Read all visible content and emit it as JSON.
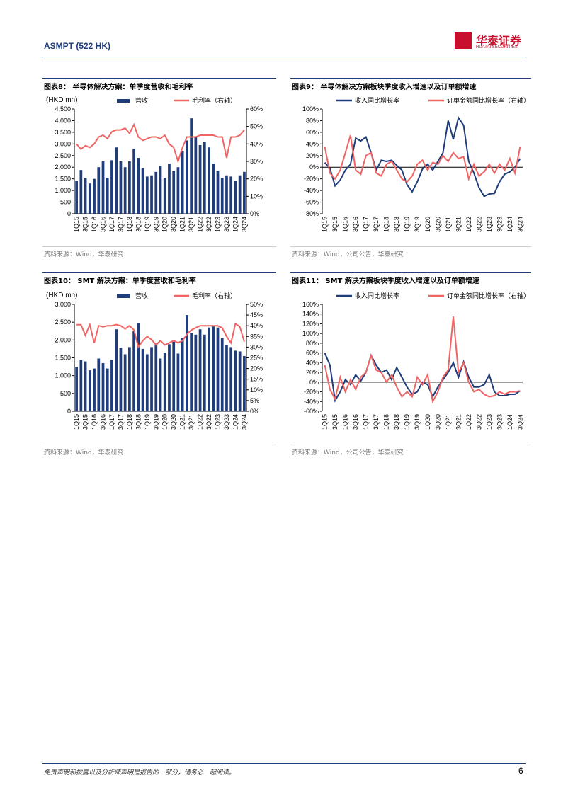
{
  "header": {
    "title": "ASMPT (522 HK)",
    "logo": "华泰证券",
    "logo_sub": "HUATAI SECURITIES"
  },
  "footer": {
    "disclaimer": "免责声明和披露以及分析师声明是报告的一部分，请务必一起阅读。",
    "page": "6"
  },
  "chart_data": [
    {
      "type": "combo",
      "title": "图表8：  半导体解决方案：单季度营收和毛利率",
      "source": "资料来源：Wind，华泰研究",
      "y_label": "(HKD mn)",
      "categories": [
        "1Q15",
        null,
        "3Q15",
        null,
        "1Q16",
        null,
        "3Q16",
        null,
        "1Q17",
        null,
        "3Q17",
        null,
        "1Q18",
        null,
        "3Q18",
        null,
        "1Q19",
        null,
        "3Q19",
        null,
        "1Q20",
        null,
        "3Q20",
        null,
        "1Q21",
        null,
        "3Q21",
        null,
        "1Q22",
        null,
        "3Q22",
        null,
        "1Q23",
        null,
        "3Q23",
        null,
        "1Q24",
        null,
        "3Q24"
      ],
      "series": [
        {
          "name": "营收",
          "color": "#1f3d7a",
          "values": [
            1400,
            1880,
            1520,
            1300,
            1500,
            2000,
            2250,
            1550,
            2300,
            2850,
            2250,
            2000,
            2250,
            2800,
            2400,
            1950,
            1600,
            1650,
            1800,
            2050,
            1550,
            2150,
            1850,
            2000,
            2700,
            3150,
            4100,
            3300,
            2950,
            3100,
            2850,
            2150,
            1850,
            1550,
            1650,
            1600,
            1400,
            1650,
            1800
          ]
        },
        {
          "name": "毛利率（右轴）",
          "color": "#f06464",
          "axis": "y2",
          "values": [
            40,
            37,
            39,
            38,
            40,
            44,
            45,
            43,
            47,
            48,
            48,
            49,
            46,
            51,
            44,
            42,
            43,
            44,
            44,
            43,
            45,
            40,
            38,
            30,
            38,
            44,
            44,
            44,
            45,
            45,
            45,
            45,
            44,
            44,
            32,
            44,
            44,
            45,
            48
          ]
        }
      ],
      "ylim": [
        0,
        4500
      ],
      "yticks": [
        0,
        500,
        {
          "value": 1000,
          "label": "1,000"
        },
        {
          "value": 1500,
          "label": "1,500"
        },
        {
          "value": 2000,
          "label": "2,000"
        },
        {
          "value": 2500,
          "label": "2,500"
        },
        {
          "value": 3000,
          "label": "3,000"
        },
        {
          "value": 3500,
          "label": "3,500"
        },
        {
          "value": 4000,
          "label": "4,000"
        },
        {
          "value": 4500,
          "label": "4,500"
        }
      ],
      "y2lim": [
        0,
        60
      ],
      "y2ticks": [
        {
          "value": 0,
          "label": "0%"
        },
        {
          "value": 10,
          "label": "10%"
        },
        {
          "value": 20,
          "label": "20%"
        },
        {
          "value": 30,
          "label": "30%"
        },
        {
          "value": 40,
          "label": "40%"
        },
        {
          "value": 50,
          "label": "50%"
        },
        {
          "value": 60,
          "label": "60%"
        }
      ]
    },
    {
      "type": "line",
      "title": "图表9：  半导体解决方案板块季度收入增速以及订单额增速",
      "source": "资料来源：Wind，公司公告，华泰研究",
      "categories": [
        "1Q15",
        null,
        "3Q15",
        null,
        "1Q16",
        null,
        "3Q16",
        null,
        "1Q17",
        null,
        "3Q17",
        null,
        "1Q18",
        null,
        "3Q18",
        null,
        "1Q19",
        null,
        "3Q19",
        null,
        "1Q20",
        null,
        "3Q20",
        null,
        "1Q21",
        null,
        "3Q21",
        null,
        "1Q22",
        null,
        "3Q22",
        null,
        "1Q23",
        null,
        "3Q23",
        null,
        "1Q24",
        null,
        "3Q24"
      ],
      "series": [
        {
          "name": "收入同比增长率",
          "color": "#1f3d7a",
          "values": [
            8,
            -2,
            -32,
            -22,
            -5,
            5,
            50,
            45,
            52,
            25,
            -5,
            12,
            10,
            12,
            3,
            -5,
            -30,
            -42,
            -25,
            -3,
            5,
            -5,
            10,
            25,
            80,
            48,
            85,
            72,
            10,
            -10,
            -35,
            -50,
            -46,
            -45,
            -25,
            -12,
            -8,
            0,
            15
          ]
        },
        {
          "name": "订单金额同比增长率（右轴）",
          "color": "#f06464",
          "values": [
            35,
            -10,
            -20,
            -5,
            25,
            55,
            -5,
            -12,
            20,
            25,
            -10,
            -15,
            5,
            10,
            -5,
            -20,
            -25,
            -15,
            5,
            12,
            -5,
            8,
            5,
            20,
            10,
            25,
            15,
            18,
            -20,
            5,
            -15,
            -8,
            5,
            -10,
            5,
            -5,
            15,
            -10,
            35
          ]
        }
      ],
      "ylim": [
        -80,
        100
      ],
      "yticks": [
        {
          "value": -80,
          "label": "-80%"
        },
        {
          "value": -60,
          "label": "-60%"
        },
        {
          "value": -40,
          "label": "-40%"
        },
        {
          "value": -20,
          "label": "-20%"
        },
        {
          "value": 0,
          "label": "0%"
        },
        {
          "value": 20,
          "label": "20%"
        },
        {
          "value": 40,
          "label": "40%"
        },
        {
          "value": 60,
          "label": "60%"
        },
        {
          "value": 80,
          "label": "80%"
        },
        {
          "value": 100,
          "label": "100%"
        }
      ]
    },
    {
      "type": "combo",
      "title": "图表10：  SMT 解决方案：单季度营收和毛利率",
      "source": "资料来源：Wind，华泰研究",
      "y_label": "(HKD mn)",
      "categories": [
        "1Q15",
        null,
        "3Q15",
        null,
        "1Q16",
        null,
        "3Q16",
        null,
        "1Q17",
        null,
        "3Q17",
        null,
        "1Q18",
        null,
        "3Q18",
        null,
        "1Q19",
        null,
        "3Q19",
        null,
        "1Q20",
        null,
        "3Q20",
        null,
        "1Q21",
        null,
        "3Q21",
        null,
        "1Q22",
        null,
        "3Q22",
        null,
        "1Q23",
        null,
        "3Q23",
        null,
        "1Q24",
        null,
        "3Q24"
      ],
      "series": [
        {
          "name": "营收",
          "color": "#1f3d7a",
          "values": [
            1250,
            1450,
            1400,
            1150,
            1200,
            1480,
            1350,
            1200,
            1450,
            2300,
            1780,
            1600,
            1800,
            2250,
            2480,
            1750,
            1600,
            1800,
            1900,
            1480,
            1650,
            1880,
            1950,
            1620,
            2050,
            2700,
            2200,
            2150,
            2300,
            2150,
            2350,
            2380,
            2350,
            2050,
            1850,
            1800,
            1700,
            1680,
            1550
          ]
        },
        {
          "name": "毛利率（右轴）",
          "color": "#f06464",
          "axis": "y2",
          "values": [
            40.5,
            40.5,
            35.5,
            40.5,
            32,
            40,
            39.5,
            40,
            40,
            40.5,
            40,
            38.5,
            40,
            38,
            30,
            33,
            35,
            33.5,
            31,
            33,
            31,
            32,
            33,
            32,
            33,
            36,
            38,
            39,
            40,
            40,
            40,
            40,
            40,
            39,
            35,
            32,
            41,
            39.5,
            32.5
          ]
        }
      ],
      "ylim": [
        0,
        3000
      ],
      "yticks": [
        0,
        500,
        {
          "value": 1000,
          "label": "1,000"
        },
        {
          "value": 1500,
          "label": "1,500"
        },
        {
          "value": 2000,
          "label": "2,000"
        },
        {
          "value": 2500,
          "label": "2,500"
        },
        {
          "value": 3000,
          "label": "3,000"
        }
      ],
      "y2lim": [
        0,
        50
      ],
      "y2ticks": [
        {
          "value": 0,
          "label": "0%"
        },
        {
          "value": 5,
          "label": "5%"
        },
        {
          "value": 10,
          "label": "10%"
        },
        {
          "value": 15,
          "label": "15%"
        },
        {
          "value": 20,
          "label": "20%"
        },
        {
          "value": 25,
          "label": "25%"
        },
        {
          "value": 30,
          "label": "30%"
        },
        {
          "value": 35,
          "label": "35%"
        },
        {
          "value": 40,
          "label": "40%"
        },
        {
          "value": 45,
          "label": "45%"
        },
        {
          "value": 50,
          "label": "50%"
        }
      ]
    },
    {
      "type": "line",
      "title": "图表11：  SMT 解决方案板块季度收入增速以及订单额增速",
      "source": "资料来源：Wind，公司公告，华泰研究",
      "categories": [
        "1Q15",
        null,
        "3Q15",
        null,
        "1Q16",
        null,
        "3Q16",
        null,
        "1Q17",
        null,
        "3Q17",
        null,
        "1Q18",
        null,
        "3Q18",
        null,
        "1Q19",
        null,
        "3Q19",
        null,
        "1Q20",
        null,
        "3Q20",
        null,
        "1Q21",
        null,
        "3Q21",
        null,
        "1Q22",
        null,
        "3Q22",
        null,
        "1Q23",
        null,
        "3Q23",
        null,
        "1Q24",
        null,
        "3Q24"
      ],
      "series": [
        {
          "name": "收入同比增长率",
          "color": "#1f3d7a",
          "values": [
            60,
            35,
            -38,
            -20,
            5,
            -5,
            15,
            2,
            20,
            55,
            35,
            20,
            25,
            5,
            30,
            10,
            -10,
            -25,
            -20,
            0,
            -5,
            -30,
            -10,
            5,
            20,
            40,
            10,
            42,
            10,
            -10,
            -10,
            -5,
            15,
            -20,
            -28,
            -28,
            -25,
            -25,
            -18
          ]
        },
        {
          "name": "订单金额同比增长率（右轴）",
          "color": "#f06464",
          "values": [
            35,
            -15,
            -35,
            10,
            -20,
            5,
            -15,
            10,
            20,
            55,
            25,
            20,
            0,
            15,
            -10,
            -30,
            -20,
            -30,
            10,
            -5,
            15,
            -40,
            -20,
            10,
            25,
            135,
            20,
            40,
            0,
            -20,
            -15,
            -25,
            -30,
            -28,
            -20,
            -25,
            -20,
            -20,
            -18
          ]
        }
      ],
      "ylim": [
        -60,
        160
      ],
      "yticks": [
        {
          "value": -60,
          "label": "-60%"
        },
        {
          "value": -40,
          "label": "-40%"
        },
        {
          "value": -20,
          "label": "-20%"
        },
        {
          "value": 0,
          "label": "0%"
        },
        {
          "value": 20,
          "label": "20%"
        },
        {
          "value": 40,
          "label": "40%"
        },
        {
          "value": 60,
          "label": "60%"
        },
        {
          "value": 80,
          "label": "80%"
        },
        {
          "value": 100,
          "label": "100%"
        },
        {
          "value": 120,
          "label": "120%"
        },
        {
          "value": 140,
          "label": "140%"
        },
        {
          "value": 160,
          "label": "160%"
        }
      ]
    }
  ]
}
